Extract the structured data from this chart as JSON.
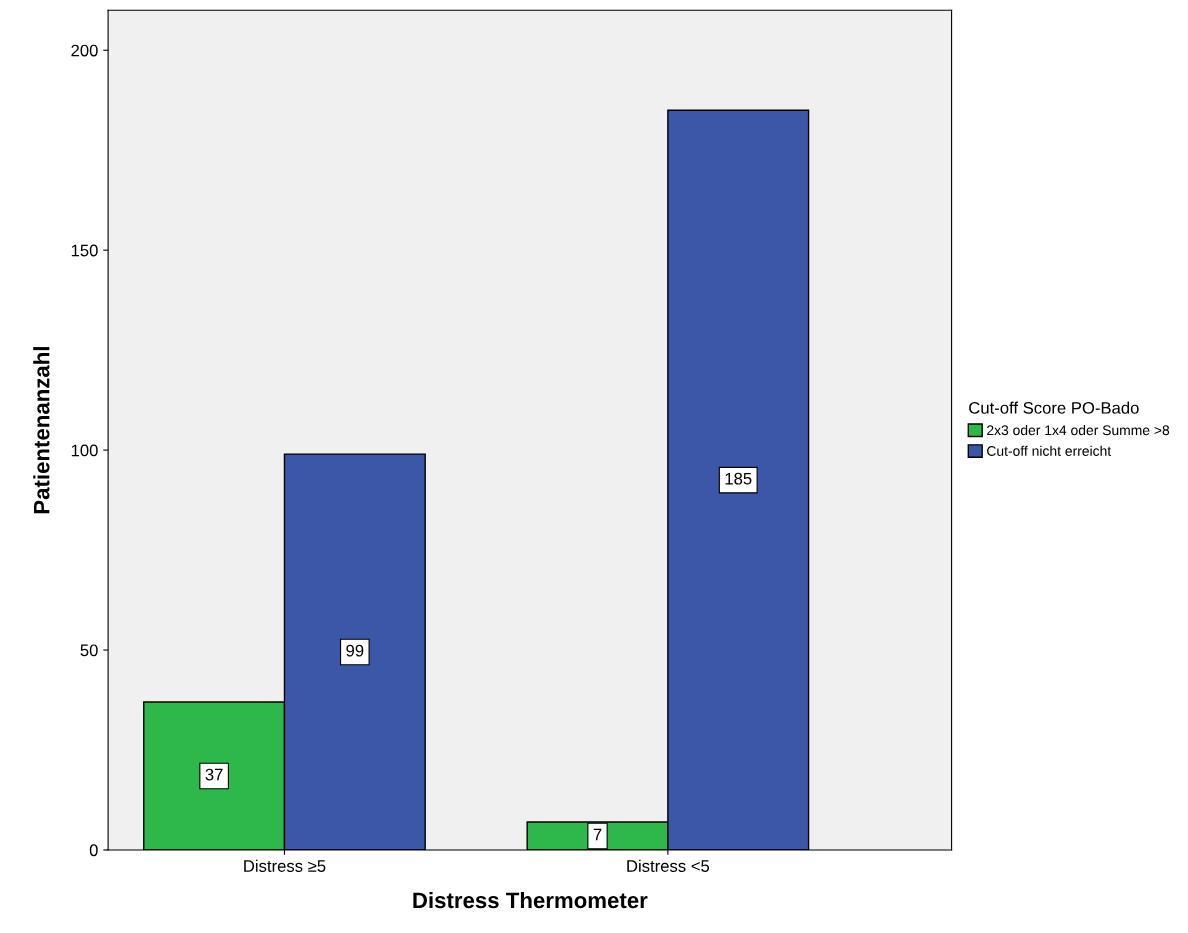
{
  "chart_data": {
    "type": "bar",
    "xlabel": "Distress Thermometer",
    "ylabel": "Patientenanzahl",
    "legend_title": "Cut-off Score PO-Bado",
    "categories": [
      "Distress ≥5",
      "Distress <5"
    ],
    "series": [
      {
        "name": "2x3 oder 1x4 oder Summe >8",
        "color": "#2eb84a",
        "values": [
          37,
          7
        ]
      },
      {
        "name": "Cut-off nicht erreicht",
        "color": "#3d57a8",
        "values": [
          99,
          185
        ]
      }
    ],
    "ylim": [
      0,
      210
    ],
    "yticks": [
      0,
      50,
      100,
      150,
      200
    ],
    "grid": false,
    "legend": "right",
    "data_labels": true
  }
}
